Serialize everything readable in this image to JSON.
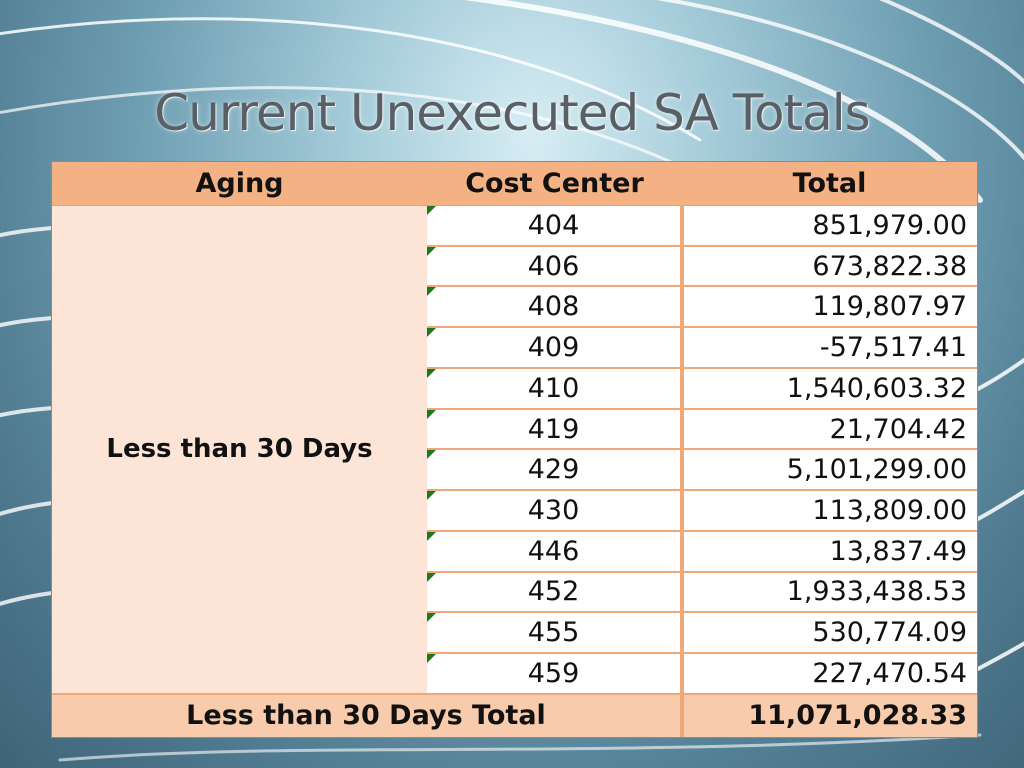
{
  "slide": {
    "title": "Current Unexecuted SA Totals"
  },
  "table": {
    "headers": {
      "aging": "Aging",
      "cost_center": "Cost Center",
      "total": "Total"
    },
    "aging_group": "Less than 30 Days",
    "rows": [
      {
        "cost_center": "404",
        "total": "851,979.00"
      },
      {
        "cost_center": "406",
        "total": "673,822.38"
      },
      {
        "cost_center": "408",
        "total": "119,807.97"
      },
      {
        "cost_center": "409",
        "total": "-57,517.41"
      },
      {
        "cost_center": "410",
        "total": "1,540,603.32"
      },
      {
        "cost_center": "419",
        "total": "21,704.42"
      },
      {
        "cost_center": "429",
        "total": "5,101,299.00"
      },
      {
        "cost_center": "430",
        "total": "113,809.00"
      },
      {
        "cost_center": "446",
        "total": "13,837.49"
      },
      {
        "cost_center": "452",
        "total": "1,933,438.53"
      },
      {
        "cost_center": "455",
        "total": "530,774.09"
      },
      {
        "cost_center": "459",
        "total": "227,470.54"
      }
    ],
    "footer": {
      "label": "Less than 30 Days Total",
      "value": "11,071,028.33"
    }
  },
  "colors": {
    "header_fill": "#f4b183",
    "group_fill": "#fce4d6",
    "footer_fill": "#f8cbad",
    "cell_border": "#f0a878",
    "error_indicator": "#1b7a1b"
  }
}
